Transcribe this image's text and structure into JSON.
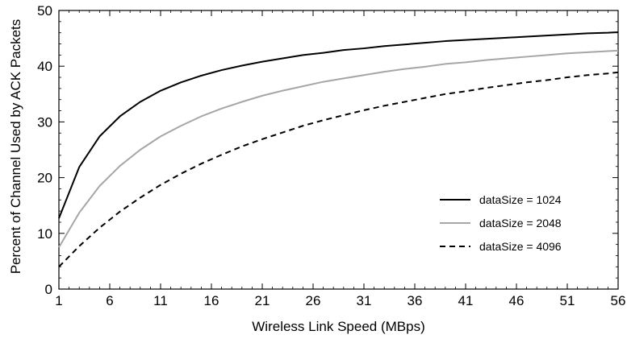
{
  "chart_data": {
    "type": "line",
    "xlabel": "Wireless Link Speed (MBps)",
    "ylabel": "Percent of Channel Used by ACK Packets",
    "xlim": [
      1,
      56
    ],
    "ylim": [
      0,
      50
    ],
    "xticks": [
      1,
      6,
      11,
      16,
      21,
      26,
      31,
      36,
      41,
      46,
      51,
      56
    ],
    "yticks": [
      0,
      10,
      20,
      30,
      40,
      50
    ],
    "grid": false,
    "legend_position": "bottom-right",
    "x": [
      1,
      3,
      5,
      7,
      9,
      11,
      13,
      15,
      17,
      19,
      21,
      23,
      25,
      27,
      29,
      31,
      33,
      35,
      37,
      39,
      41,
      43,
      45,
      47,
      49,
      51,
      53,
      55,
      56
    ],
    "series": [
      {
        "name": "dataSize = 1024",
        "color": "#000000",
        "dash": "solid",
        "values": [
          12.7,
          21.9,
          27.4,
          31.0,
          33.6,
          35.6,
          37.1,
          38.3,
          39.3,
          40.1,
          40.8,
          41.4,
          42.0,
          42.4,
          42.9,
          43.2,
          43.6,
          43.9,
          44.2,
          44.5,
          44.7,
          44.9,
          45.1,
          45.3,
          45.5,
          45.7,
          45.9,
          46.0,
          46.1
        ]
      },
      {
        "name": "dataSize = 2048",
        "color": "#a6a6a6",
        "dash": "solid",
        "values": [
          7.5,
          13.7,
          18.5,
          22.1,
          25.0,
          27.4,
          29.3,
          31.0,
          32.4,
          33.6,
          34.7,
          35.6,
          36.4,
          37.2,
          37.8,
          38.4,
          39.0,
          39.5,
          39.9,
          40.4,
          40.7,
          41.1,
          41.4,
          41.7,
          42.0,
          42.3,
          42.5,
          42.7,
          42.8
        ]
      },
      {
        "name": "dataSize = 4096",
        "color": "#000000",
        "dash": "dashed",
        "values": [
          4.0,
          7.7,
          11.0,
          13.9,
          16.4,
          18.7,
          20.7,
          22.5,
          24.1,
          25.6,
          26.9,
          28.1,
          29.3,
          30.3,
          31.2,
          32.1,
          32.9,
          33.6,
          34.3,
          35.0,
          35.5,
          36.1,
          36.6,
          37.1,
          37.5,
          38.0,
          38.4,
          38.7,
          38.9
        ]
      }
    ]
  }
}
